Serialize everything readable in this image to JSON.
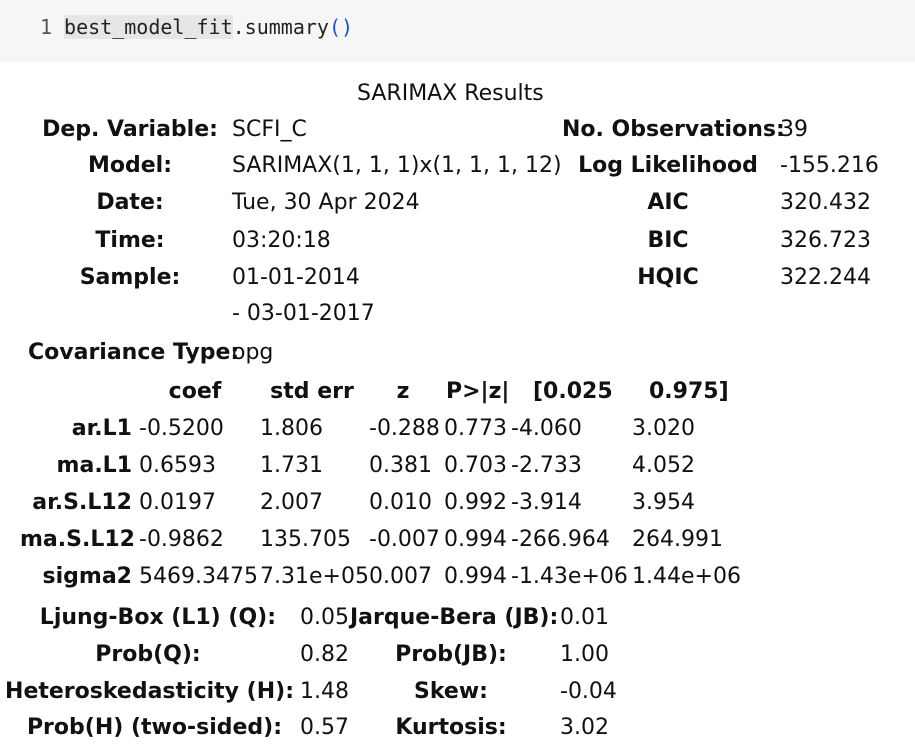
{
  "code_cell": {
    "line_number": "1",
    "object": "best_model_fit",
    "method": ".summary",
    "call": "()"
  },
  "summary": {
    "caption": "SARIMAX Results",
    "top_left": [
      {
        "label": "Dep. Variable:",
        "value": "SCFI_C"
      },
      {
        "label": "Model:",
        "value": "SARIMAX(1, 1, 1)x(1, 1, 1, 12)"
      },
      {
        "label": "Date:",
        "value": "Tue, 30 Apr 2024"
      },
      {
        "label": "Time:",
        "value": "03:20:18"
      },
      {
        "label": "Sample:",
        "value": "01-01-2014",
        "value2": "- 03-01-2017"
      }
    ],
    "top_right": [
      {
        "label": "No. Observations:",
        "value": "39"
      },
      {
        "label": "Log Likelihood",
        "value": "-155.216"
      },
      {
        "label": "AIC",
        "value": "320.432"
      },
      {
        "label": "BIC",
        "value": "326.723"
      },
      {
        "label": "HQIC",
        "value": "322.244"
      }
    ],
    "covariance": {
      "label": "Covariance Type:",
      "value": "opg"
    },
    "coef_headers": [
      "coef",
      "std err",
      "z",
      "P>|z|",
      "[0.025",
      "0.975]"
    ],
    "coef_rows": [
      {
        "name": "ar.L1",
        "cells": [
          "-0.5200",
          "1.806",
          "-0.288",
          "0.773",
          "-4.060",
          "3.020"
        ]
      },
      {
        "name": "ma.L1",
        "cells": [
          "0.6593",
          "1.731",
          "0.381",
          "0.703",
          "-2.733",
          "4.052"
        ]
      },
      {
        "name": "ar.S.L12",
        "cells": [
          "0.0197",
          "2.007",
          "0.010",
          "0.992",
          "-3.914",
          "3.954"
        ]
      },
      {
        "name": "ma.S.L12",
        "cells": [
          "-0.9862",
          "135.705",
          "-0.007",
          "0.994",
          "-266.964",
          "264.991"
        ]
      },
      {
        "name": "sigma2",
        "cells": [
          "5469.3475",
          "7.31e+05",
          "0.007",
          "0.994",
          "-1.43e+06",
          "1.44e+06"
        ]
      }
    ],
    "diagnostics": [
      {
        "l1": "Ljung-Box (L1) (Q):",
        "v1": "0.05",
        "l2": "Jarque-Bera (JB):",
        "v2": "0.01"
      },
      {
        "l1": "Prob(Q):",
        "v1": "0.82",
        "l2": "Prob(JB):",
        "v2": "1.00"
      },
      {
        "l1": "Heteroskedasticity (H):",
        "v1": "1.48",
        "l2": "Skew:",
        "v2": "-0.04"
      },
      {
        "l1": "Prob(H) (two-sided):",
        "v1": "0.57",
        "l2": "Kurtosis:",
        "v2": "3.02"
      }
    ]
  }
}
